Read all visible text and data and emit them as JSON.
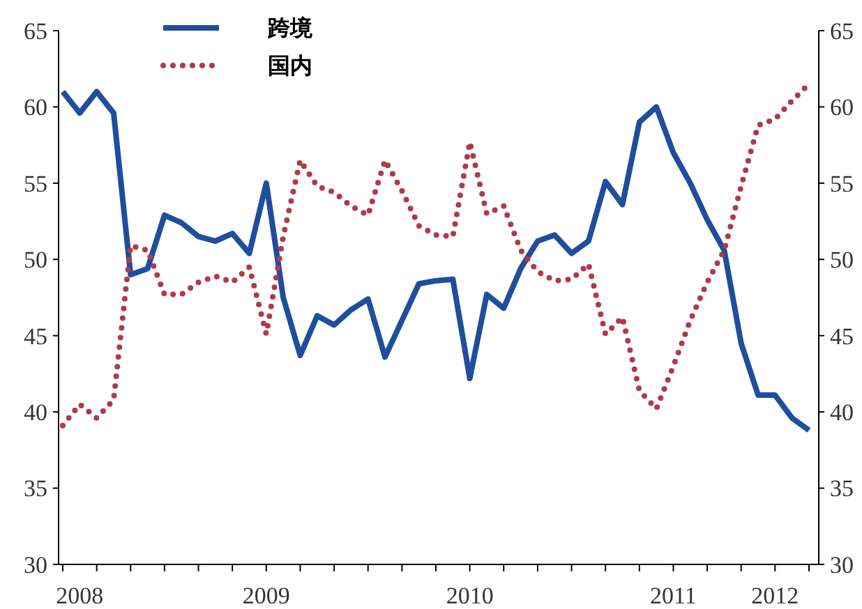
{
  "chart_data": {
    "type": "line",
    "categories": [
      null,
      "2008",
      null,
      null,
      null,
      null,
      null,
      null,
      null,
      null,
      null,
      null,
      "2009",
      null,
      null,
      null,
      null,
      null,
      null,
      null,
      null,
      null,
      null,
      null,
      "2010",
      null,
      null,
      null,
      null,
      null,
      null,
      null,
      null,
      null,
      null,
      null,
      "2011",
      null,
      null,
      null,
      null,
      null,
      "2012",
      null,
      null
    ],
    "series": [
      {
        "name": "跨境",
        "color": "#1f4e9c",
        "line_style": "solid",
        "values": [
          61.0,
          59.6,
          61.0,
          59.6,
          49.0,
          49.4,
          52.9,
          52.4,
          51.5,
          51.2,
          51.7,
          50.4,
          55.0,
          47.5,
          43.7,
          46.3,
          45.7,
          46.7,
          47.4,
          43.6,
          46.0,
          48.4,
          48.6,
          48.7,
          42.2,
          47.7,
          46.8,
          49.4,
          51.2,
          51.6,
          50.4,
          51.2,
          55.1,
          53.6,
          59.0,
          60.0,
          57.0,
          55.0,
          52.6,
          50.6,
          44.5,
          41.1,
          41.1,
          39.6,
          38.8
        ]
      },
      {
        "name": "国内",
        "color": "#b03a48",
        "line_style": "dotted",
        "values": [
          39.1,
          40.5,
          39.6,
          40.8,
          50.9,
          50.6,
          47.7,
          47.7,
          48.5,
          48.9,
          48.5,
          49.5,
          45.1,
          51.5,
          56.5,
          54.8,
          54.4,
          53.5,
          52.9,
          56.5,
          54.5,
          52.2,
          51.6,
          51.5,
          57.7,
          53.0,
          53.5,
          50.6,
          49.2,
          48.6,
          48.7,
          49.7,
          45.1,
          46.2,
          41.4,
          40.2,
          43.0,
          46.0,
          48.5,
          50.6,
          54.8,
          58.8,
          59.2,
          60.4,
          61.5
        ]
      }
    ],
    "ylim": [
      30,
      65
    ],
    "yticks": [
      30,
      35,
      40,
      45,
      50,
      55,
      60,
      65
    ],
    "y2lim": [
      30,
      65
    ],
    "y2ticks": [
      30,
      35,
      40,
      45,
      50,
      55,
      60,
      65
    ],
    "legend": "top left",
    "grid": false
  }
}
